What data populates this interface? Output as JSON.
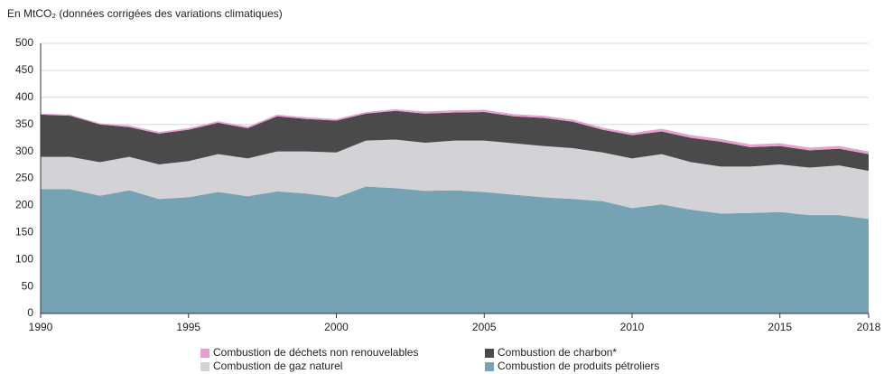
{
  "chart_data": {
    "type": "area",
    "stacked": true,
    "title": "En MtCO₂ (données corrigées des variations climatiques)",
    "x": [
      1990,
      1991,
      1992,
      1993,
      1994,
      1995,
      1996,
      1997,
      1998,
      1999,
      2000,
      2001,
      2002,
      2003,
      2004,
      2005,
      2006,
      2007,
      2008,
      2009,
      2010,
      2011,
      2012,
      2013,
      2014,
      2015,
      2016,
      2017,
      2018
    ],
    "xlim": [
      1990,
      2018
    ],
    "xticks": [
      1990,
      1995,
      2000,
      2005,
      2010,
      2015,
      2018
    ],
    "ylim": [
      0,
      500
    ],
    "yticks": [
      0,
      50,
      100,
      150,
      200,
      250,
      300,
      350,
      400,
      450,
      500
    ],
    "grid": true,
    "series": [
      {
        "name": "Combustion de produits pétroliers",
        "color": "#76a3b3",
        "values": [
          230,
          230,
          218,
          228,
          212,
          215,
          225,
          217,
          226,
          222,
          215,
          235,
          232,
          227,
          228,
          225,
          220,
          215,
          212,
          208,
          195,
          202,
          192,
          185,
          186,
          188,
          182,
          182,
          175
        ]
      },
      {
        "name": "Combustion de gaz naturel",
        "color": "#d3d2d6",
        "values": [
          60,
          60,
          62,
          62,
          64,
          67,
          70,
          70,
          74,
          78,
          83,
          85,
          90,
          89,
          92,
          95,
          95,
          95,
          94,
          90,
          92,
          93,
          88,
          87,
          86,
          88,
          88,
          92,
          89
        ]
      },
      {
        "name": "Combustion de charbon*",
        "color": "#4a4a4a",
        "values": [
          78,
          76,
          70,
          55,
          57,
          58,
          58,
          56,
          65,
          60,
          59,
          50,
          53,
          54,
          52,
          53,
          50,
          52,
          49,
          42,
          43,
          42,
          45,
          46,
          36,
          34,
          32,
          31,
          31
        ]
      },
      {
        "name": "Combustion de déchets non renouvelables",
        "color": "#e89fcf",
        "values": [
          2,
          2,
          2,
          3,
          3,
          3,
          3,
          3,
          3,
          3,
          3,
          3,
          3,
          4,
          4,
          4,
          4,
          4,
          4,
          4,
          4,
          5,
          5,
          5,
          5,
          5,
          5,
          5,
          5
        ]
      }
    ]
  }
}
